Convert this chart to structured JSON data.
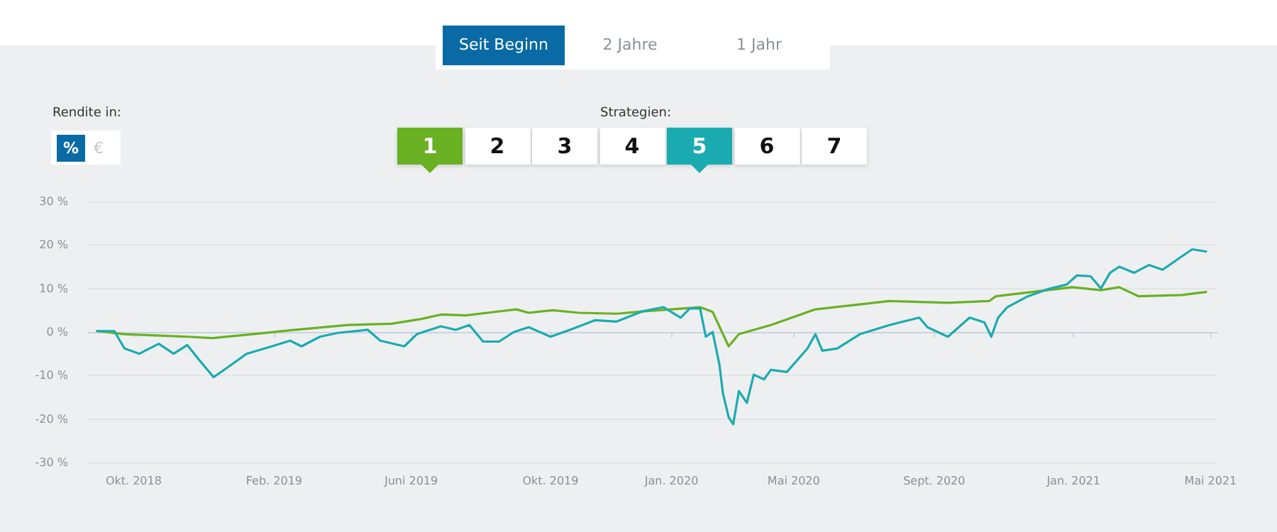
{
  "chart_data": {
    "type": "line",
    "legend": "top",
    "legend_title": "Strategien:",
    "grid": "y",
    "annotations": [
      "Seit Beginn",
      "2 Jahre",
      "1 Jahr",
      "Rendite in:",
      "%",
      "€",
      "2",
      "3",
      "4",
      "6",
      "7"
    ],
    "xlim": [
      "2018-08-22",
      "2021-05-07"
    ],
    "xticks": [
      {
        "value": "2018-10-01",
        "label": "Okt. 2018"
      },
      {
        "value": "2019-02-01",
        "label": "Feb. 2019"
      },
      {
        "value": "2019-06-01",
        "label": "Juni 2019"
      },
      {
        "value": "2019-10-01",
        "label": "Okt. 2019"
      },
      {
        "value": "2020-01-15",
        "label": "Jan. 2020"
      },
      {
        "value": "2020-05-01",
        "label": "Mai 2020"
      },
      {
        "value": "2020-09-01",
        "label": "Sept. 2020"
      },
      {
        "value": "2021-01-01",
        "label": "Jan. 2021"
      },
      {
        "value": "2021-05-01",
        "label": "Mai 2021"
      }
    ],
    "ylim": [
      -30,
      30
    ],
    "yticks": [
      {
        "value": -30,
        "label": "-30 %"
      },
      {
        "value": -20,
        "label": "-20 %"
      },
      {
        "value": -10,
        "label": "-10 %"
      },
      {
        "value": 0,
        "label": "0 %"
      },
      {
        "value": 10,
        "label": "10 %"
      },
      {
        "value": 20,
        "label": "20 %"
      },
      {
        "value": 30,
        "label": "30 %"
      }
    ],
    "series": [
      {
        "name": "1",
        "color": "#6ab023",
        "x": [
          "2018-08-30",
          "2018-09-23",
          "2018-11-17",
          "2018-12-09",
          "2019-01-21",
          "2019-02-15",
          "2019-04-07",
          "2019-05-15",
          "2019-06-10",
          "2019-06-27",
          "2019-07-19",
          "2019-08-13",
          "2019-09-01",
          "2019-09-12",
          "2019-10-03",
          "2019-10-26",
          "2019-11-28",
          "2019-12-20",
          "2020-02-09",
          "2020-02-20",
          "2020-03-05",
          "2020-03-14",
          "2020-04-11",
          "2020-05-20",
          "2020-07-24",
          "2020-09-13",
          "2020-10-19",
          "2020-10-25",
          "2020-12-09",
          "2020-12-31",
          "2021-01-25",
          "2021-02-10",
          "2021-02-27",
          "2021-04-06",
          "2021-04-27"
        ],
        "values": [
          0.2,
          -0.5,
          -1.1,
          -1.4,
          -0.3,
          0.4,
          1.6,
          1.9,
          3,
          4,
          3.8,
          4.6,
          5.2,
          4.4,
          5,
          4.4,
          4.2,
          4.7,
          5.7,
          4.6,
          -3.3,
          -0.5,
          1.6,
          5.2,
          7.1,
          6.7,
          7.1,
          8.2,
          9.6,
          10.3,
          9.6,
          10.3,
          8.2,
          8.5,
          9.2
        ]
      },
      {
        "name": "5",
        "color": "#1aabb0",
        "x": [
          "2018-08-30",
          "2018-09-14",
          "2018-09-23",
          "2018-10-06",
          "2018-10-23",
          "2018-11-05",
          "2018-11-17",
          "2018-11-26",
          "2018-12-10",
          "2018-12-22",
          "2019-01-08",
          "2019-01-30",
          "2019-02-15",
          "2019-02-25",
          "2019-03-13",
          "2019-03-29",
          "2019-04-24",
          "2019-05-05",
          "2019-05-26",
          "2019-06-06",
          "2019-06-27",
          "2019-07-10",
          "2019-07-22",
          "2019-08-03",
          "2019-08-17",
          "2019-08-30",
          "2019-09-12",
          "2019-10-01",
          "2019-10-18",
          "2019-11-09",
          "2019-11-28",
          "2019-12-20",
          "2020-01-08",
          "2020-01-23",
          "2020-01-31",
          "2020-02-09",
          "2020-02-14",
          "2020-02-20",
          "2020-02-26",
          "2020-02-29",
          "2020-03-05",
          "2020-03-09",
          "2020-03-14",
          "2020-03-21",
          "2020-03-27",
          "2020-04-05",
          "2020-04-11",
          "2020-04-25",
          "2020-05-13",
          "2020-05-20",
          "2020-05-26",
          "2020-06-08",
          "2020-06-28",
          "2020-07-24",
          "2020-08-19",
          "2020-08-26",
          "2020-09-13",
          "2020-10-02",
          "2020-10-15",
          "2020-10-21",
          "2020-10-27",
          "2020-11-04",
          "2020-11-22",
          "2020-12-09",
          "2020-12-26",
          "2021-01-04",
          "2021-01-16",
          "2021-01-25",
          "2021-02-02",
          "2021-02-10",
          "2021-02-23",
          "2021-03-08",
          "2021-03-20",
          "2021-04-06",
          "2021-04-15",
          "2021-04-27"
        ],
        "values": [
          0.2,
          0.2,
          -3.8,
          -5,
          -2.7,
          -5,
          -3,
          -6,
          -10.4,
          -8.2,
          -5,
          -3.3,
          -2,
          -3.3,
          -1.1,
          -0.2,
          0.5,
          -2,
          -3.3,
          -0.5,
          1.3,
          0.5,
          1.6,
          -2.2,
          -2.2,
          0,
          1.1,
          -1.1,
          0.5,
          2.7,
          2.4,
          4.7,
          5.7,
          3.3,
          5.4,
          5.4,
          -1.1,
          0,
          -7.6,
          -14.1,
          -19.6,
          -21.2,
          -13.6,
          -16.3,
          -9.8,
          -10.9,
          -8.7,
          -9.2,
          -3.8,
          -0.5,
          -4.3,
          -3.8,
          -0.5,
          1.6,
          3.3,
          1.1,
          -1.1,
          3.3,
          2.2,
          -1.1,
          3.3,
          5.7,
          8.2,
          9.8,
          10.9,
          13,
          12.8,
          10,
          13.6,
          15,
          13.6,
          15.4,
          14.3,
          17.4,
          19,
          18.5
        ]
      }
    ]
  }
}
